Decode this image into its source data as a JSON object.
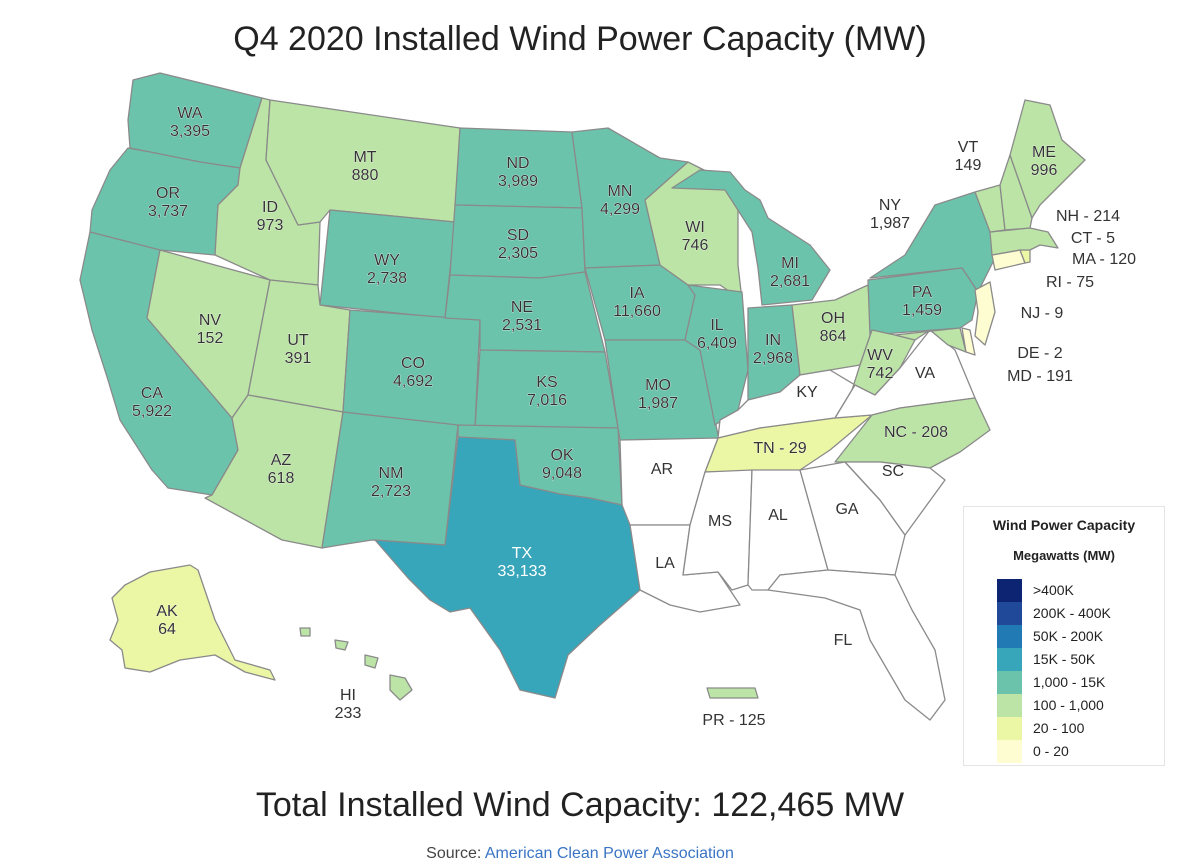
{
  "title": "Q4 2020 Installed Wind Power Capacity (MW)",
  "total_text": "Total Installed Wind Capacity: 122,465 MW",
  "source": {
    "prefix": "Source: ",
    "link_text": "American Clean Power Association"
  },
  "legend": {
    "title": "Wind Power Capacity",
    "subtitle": "Megawatts (MW)",
    "bins": [
      {
        "label": ">400K",
        "color": "#0c2471"
      },
      {
        "label": "200K - 400K",
        "color": "#204a99"
      },
      {
        "label": "50K - 200K",
        "color": "#217ab4"
      },
      {
        "label": "15K - 50K",
        "color": "#37a6bb"
      },
      {
        "label": "1,000 - 15K",
        "color": "#6cc3ac"
      },
      {
        "label": "100 - 1,000",
        "color": "#bce4a6"
      },
      {
        "label": "20 - 100",
        "color": "#ecf7a5"
      },
      {
        "label": "0 - 20",
        "color": "#fefdd2"
      }
    ],
    "no_data_color": "#ffffff"
  },
  "states": {
    "WA": {
      "label": "WA",
      "value": "3,395",
      "color": "#6cc3ac"
    },
    "OR": {
      "label": "OR",
      "value": "3,737",
      "color": "#6cc3ac"
    },
    "CA": {
      "label": "CA",
      "value": "5,922",
      "color": "#6cc3ac"
    },
    "ID": {
      "label": "ID",
      "value": "973",
      "color": "#bce4a6"
    },
    "NV": {
      "label": "NV",
      "value": "152",
      "color": "#bce4a6"
    },
    "MT": {
      "label": "MT",
      "value": "880",
      "color": "#bce4a6"
    },
    "WY": {
      "label": "WY",
      "value": "2,738",
      "color": "#6cc3ac"
    },
    "UT": {
      "label": "UT",
      "value": "391",
      "color": "#bce4a6"
    },
    "AZ": {
      "label": "AZ",
      "value": "618",
      "color": "#bce4a6"
    },
    "CO": {
      "label": "CO",
      "value": "4,692",
      "color": "#6cc3ac"
    },
    "NM": {
      "label": "NM",
      "value": "2,723",
      "color": "#6cc3ac"
    },
    "ND": {
      "label": "ND",
      "value": "3,989",
      "color": "#6cc3ac"
    },
    "SD": {
      "label": "SD",
      "value": "2,305",
      "color": "#6cc3ac"
    },
    "NE": {
      "label": "NE",
      "value": "2,531",
      "color": "#6cc3ac"
    },
    "KS": {
      "label": "KS",
      "value": "7,016",
      "color": "#6cc3ac"
    },
    "OK": {
      "label": "OK",
      "value": "9,048",
      "color": "#6cc3ac"
    },
    "TX": {
      "label": "TX",
      "value": "33,133",
      "color": "#37a6bb"
    },
    "MN": {
      "label": "MN",
      "value": "4,299",
      "color": "#6cc3ac"
    },
    "IA": {
      "label": "IA",
      "value": "11,660",
      "color": "#6cc3ac"
    },
    "MO": {
      "label": "MO",
      "value": "1,987",
      "color": "#6cc3ac"
    },
    "WI": {
      "label": "WI",
      "value": "746",
      "color": "#bce4a6"
    },
    "IL": {
      "label": "IL",
      "value": "6,409",
      "color": "#6cc3ac"
    },
    "MI": {
      "label": "MI",
      "value": "2,681",
      "color": "#6cc3ac"
    },
    "IN": {
      "label": "IN",
      "value": "2,968",
      "color": "#6cc3ac"
    },
    "OH": {
      "label": "OH",
      "value": "864",
      "color": "#bce4a6"
    },
    "NY": {
      "label": "NY",
      "value": "1,987",
      "color": "#6cc3ac"
    },
    "PA": {
      "label": "PA",
      "value": "1,459",
      "color": "#6cc3ac"
    },
    "WV": {
      "label": "WV",
      "value": "742",
      "color": "#bce4a6"
    },
    "VT": {
      "label": "VT",
      "value": "149",
      "color": "#bce4a6"
    },
    "ME": {
      "label": "ME",
      "value": "996",
      "color": "#bce4a6"
    },
    "NH": {
      "label": "NH - 214",
      "color": "#bce4a6"
    },
    "MA": {
      "label": "MA - 120",
      "color": "#bce4a6"
    },
    "CT": {
      "label": "CT - 5",
      "color": "#fefdd2"
    },
    "RI": {
      "label": "RI - 75",
      "color": "#ecf7a5"
    },
    "NJ": {
      "label": "NJ - 9",
      "color": "#fefdd2"
    },
    "DE": {
      "label": "DE - 2",
      "color": "#fefdd2"
    },
    "MD": {
      "label": "MD - 191",
      "color": "#bce4a6"
    },
    "VA": {
      "label": "VA",
      "color": "#ffffff"
    },
    "NC": {
      "label": "NC - 208",
      "color": "#bce4a6"
    },
    "TN": {
      "label": "TN - 29",
      "color": "#ecf7a5"
    },
    "KY": {
      "label": "KY",
      "color": "#ffffff"
    },
    "SC": {
      "label": "SC",
      "color": "#ffffff"
    },
    "GA": {
      "label": "GA",
      "color": "#ffffff"
    },
    "FL": {
      "label": "FL",
      "color": "#ffffff"
    },
    "AL": {
      "label": "AL",
      "color": "#ffffff"
    },
    "MS": {
      "label": "MS",
      "color": "#ffffff"
    },
    "LA": {
      "label": "LA",
      "color": "#ffffff"
    },
    "AR": {
      "label": "AR",
      "color": "#ffffff"
    },
    "AK": {
      "label": "AK",
      "value": "64",
      "color": "#ecf7a5"
    },
    "HI": {
      "label": "HI",
      "value": "233",
      "color": "#bce4a6"
    },
    "PR": {
      "label": "PR - 125",
      "color": "#bce4a6"
    }
  }
}
